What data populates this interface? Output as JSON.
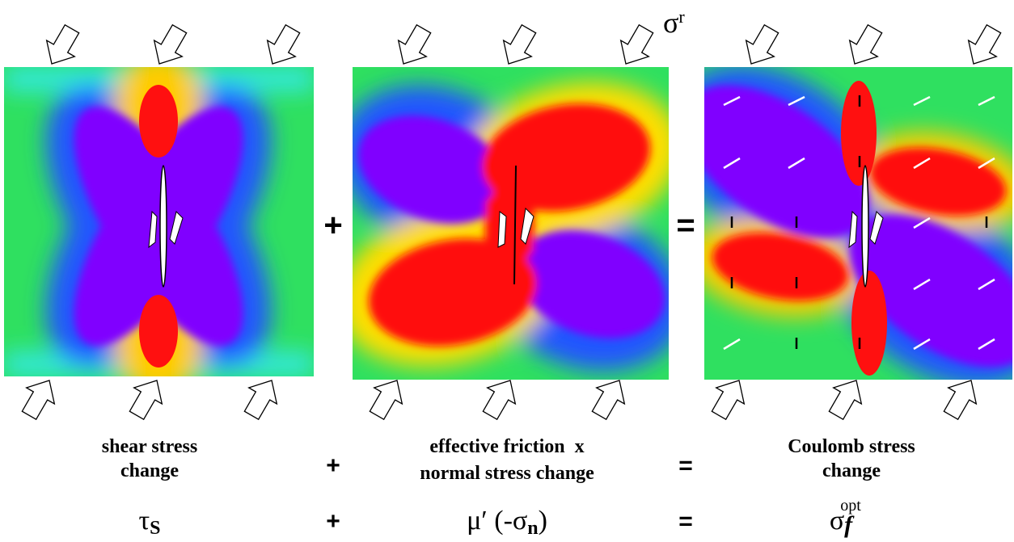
{
  "symbol_label": {
    "main": "σ",
    "superscript": "r"
  },
  "operators": [
    "+",
    "="
  ],
  "panels": [
    {
      "caption": [
        "shear stress",
        "change"
      ]
    },
    {
      "caption": [
        "effective friction  x",
        "normal stress change"
      ]
    },
    {
      "caption": [
        "Coulomb stress",
        "change"
      ]
    }
  ],
  "formulas": [
    {
      "symbol": "τ",
      "subscript": "S"
    },
    {
      "prefix": "μ′ (-σ",
      "subscript": "n",
      "suffix": ")"
    },
    {
      "symbol": "σ",
      "subscript": "f",
      "superscript": "opt"
    }
  ]
}
